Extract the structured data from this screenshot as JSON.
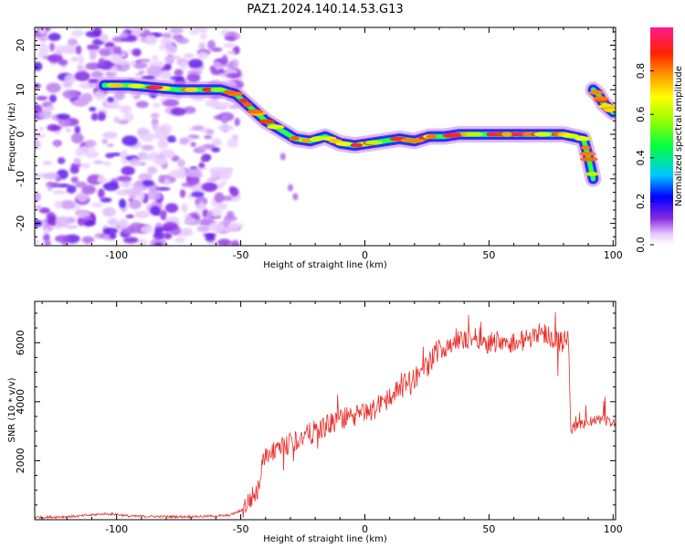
{
  "title": "PAZ1.2024.140.14.53.G13",
  "chart_data": [
    {
      "type": "heatmap",
      "title": "PAZ1.2024.140.14.53.G13",
      "xlabel": "Height of straight line (km)",
      "ylabel": "Frequency (Hz)",
      "xlim": [
        -133,
        101
      ],
      "ylim": [
        -25,
        24
      ],
      "xticks": [
        -100,
        -50,
        0,
        50,
        100
      ],
      "yticks": [
        -20,
        -10,
        0,
        10,
        20
      ],
      "colorbar": {
        "label": "Normalized spectral amplitude",
        "range": [
          0.0,
          1.0
        ],
        "ticks": [
          0.0,
          0.2,
          0.4,
          0.6,
          0.8
        ]
      },
      "ridge": {
        "x": [
          -105,
          -95,
          -85,
          -75,
          -65,
          -58,
          -52,
          -46,
          -40,
          -34,
          -28,
          -22,
          -16,
          -10,
          -4,
          2,
          8,
          14,
          20,
          26,
          32,
          38,
          44,
          50,
          56,
          62,
          68,
          74,
          80,
          84,
          88,
          90,
          92
        ],
        "y": [
          11,
          11,
          10.5,
          10,
          10,
          10,
          9,
          6,
          3,
          1,
          -1,
          -1.5,
          -0.5,
          -2,
          -2.5,
          -2,
          -1.5,
          -1,
          -1.5,
          -0.5,
          -0.5,
          0,
          0,
          0,
          0,
          0,
          0,
          0,
          0,
          -0.5,
          -1,
          -5,
          -10
        ]
      },
      "secondary_ridge": {
        "x": [
          92,
          94,
          96,
          98,
          100
        ],
        "y": [
          10,
          9,
          7,
          6,
          5
        ]
      }
    },
    {
      "type": "line",
      "xlabel": "Height of straight line (km)",
      "ylabel": "SNR (10 * v/v)",
      "xlim": [
        -133,
        101
      ],
      "ylim": [
        0,
        7400
      ],
      "xticks": [
        -100,
        -50,
        0,
        50,
        100
      ],
      "yticks": [
        2000,
        4000,
        6000
      ],
      "line_color": "#e8302a",
      "series": [
        {
          "x": [
            -133,
            -125,
            -115,
            -105,
            -100,
            -95,
            -85,
            -75,
            -65,
            -55,
            -50,
            -47,
            -45,
            -43,
            -41,
            -38,
            -35,
            -30,
            -25,
            -20,
            -15,
            -10,
            -5,
            0,
            5,
            10,
            15,
            20,
            25,
            30,
            35,
            40,
            45,
            50,
            55,
            60,
            65,
            70,
            75,
            80,
            82,
            83,
            85,
            90,
            95,
            100
          ],
          "y": [
            80,
            90,
            120,
            200,
            180,
            120,
            110,
            100,
            110,
            140,
            300,
            600,
            800,
            1000,
            2000,
            2200,
            2300,
            2600,
            2800,
            3000,
            3200,
            3400,
            3500,
            3600,
            3800,
            4200,
            4500,
            4800,
            5200,
            5800,
            6000,
            6100,
            6200,
            6000,
            6100,
            6000,
            6100,
            6400,
            6200,
            6000,
            6300,
            3000,
            3200,
            3300,
            3400,
            3300
          ]
        }
      ]
    }
  ]
}
